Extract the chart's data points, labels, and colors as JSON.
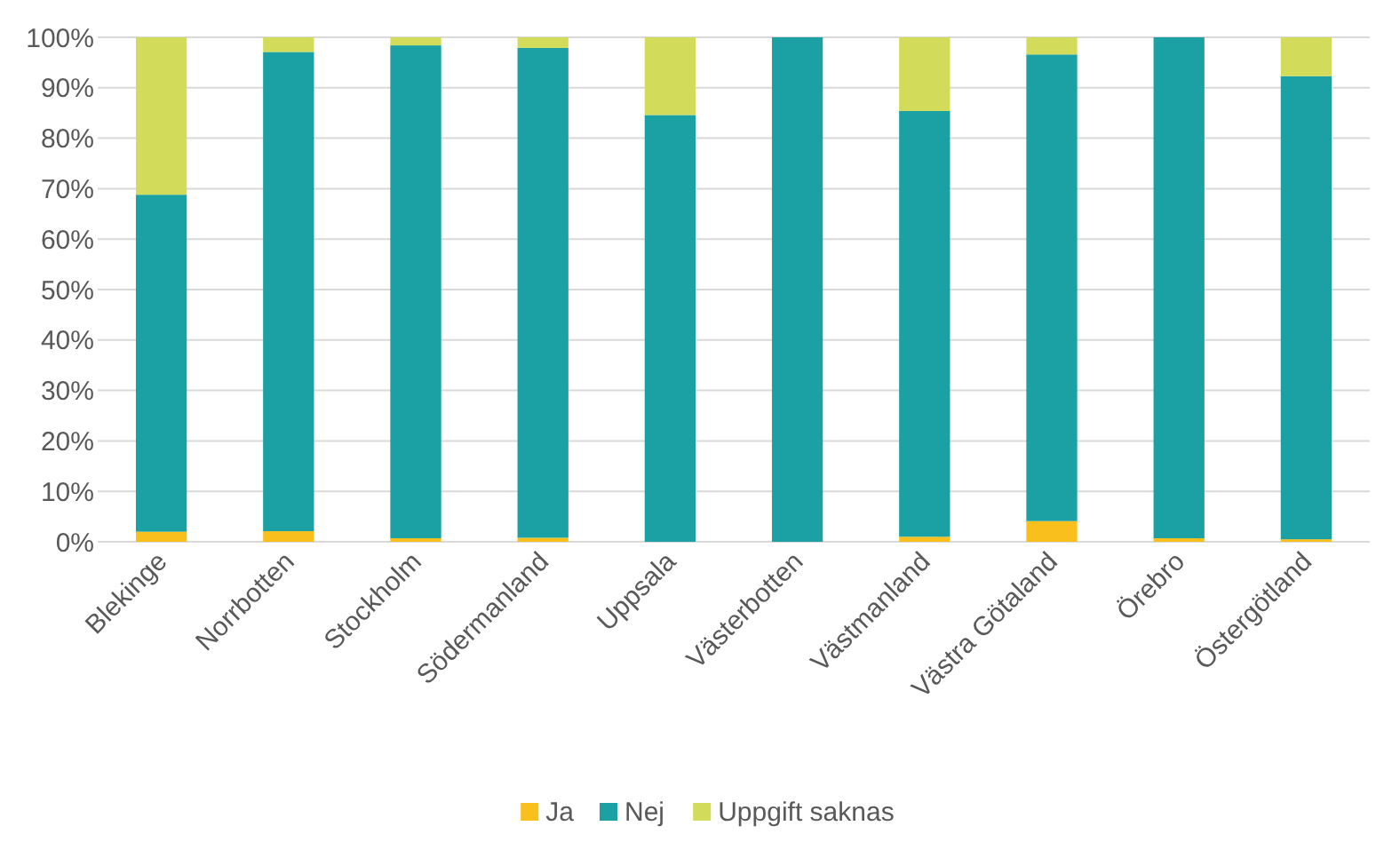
{
  "chart_data": {
    "type": "bar",
    "stacked": true,
    "categories": [
      "Blekinge",
      "Norrbotten",
      "Stockholm",
      "Södermanland",
      "Uppsala",
      "Västerbotten",
      "Västmanland",
      "Västra Götaland",
      "Örebro",
      "Östergötland"
    ],
    "series": [
      {
        "name": "Ja",
        "color": "#f9bf1c",
        "values": [
          2,
          2.1,
          0.7,
          0.8,
          0,
          0,
          1,
          4.1,
          0.7,
          0.5
        ]
      },
      {
        "name": "Nej",
        "color": "#1ba1a3",
        "values": [
          66.8,
          95,
          97.7,
          97.1,
          84.6,
          100,
          84.4,
          92.5,
          99.3,
          91.8
        ]
      },
      {
        "name": "Uppgift saknas",
        "color": "#d2dc5a",
        "values": [
          31.2,
          2.9,
          1.6,
          2.1,
          15.4,
          0,
          14.6,
          3.4,
          0,
          7.7
        ]
      }
    ],
    "ylim": [
      0,
      100
    ],
    "yticks": [
      {
        "value": 0,
        "label": "0%"
      },
      {
        "value": 10,
        "label": "10%"
      },
      {
        "value": 20,
        "label": "20%"
      },
      {
        "value": 30,
        "label": "30%"
      },
      {
        "value": 40,
        "label": "40%"
      },
      {
        "value": 50,
        "label": "50%"
      },
      {
        "value": 60,
        "label": "60%"
      },
      {
        "value": 70,
        "label": "70%"
      },
      {
        "value": 80,
        "label": "80%"
      },
      {
        "value": 90,
        "label": "90%"
      },
      {
        "value": 100,
        "label": "100%"
      }
    ],
    "grid": "y",
    "legend": "bottom"
  }
}
